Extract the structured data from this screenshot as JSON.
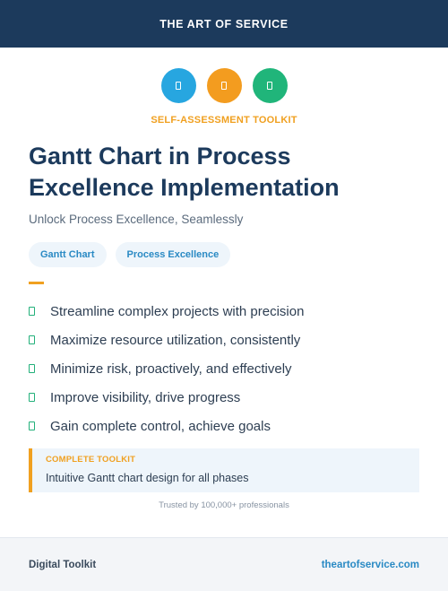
{
  "header": {
    "brand": "THE ART OF SERVICE"
  },
  "icons": [
    {
      "name": "document-icon",
      "color": "#27a6e0"
    },
    {
      "name": "document-icon",
      "color": "#f39c1f"
    },
    {
      "name": "document-icon",
      "color": "#20b57a"
    }
  ],
  "kicker": "SELF-ASSESSMENT TOOLKIT",
  "title": {
    "line1": "Gantt Chart in Process",
    "line2": "Excellence Implementation"
  },
  "subtitle": "Unlock Process Excellence, Seamlessly",
  "tags": [
    "Gantt Chart",
    "Process Excellence"
  ],
  "features": [
    "Streamline complex projects with precision",
    "Maximize resource utilization, consistently",
    "Minimize risk, proactively, and effectively",
    "Improve visibility, drive progress",
    "Gain complete control, achieve goals"
  ],
  "callout": {
    "label": "COMPLETE TOOLKIT",
    "text": "Intuitive Gantt chart design for all phases"
  },
  "trusted": "Trusted by 100,000+ professionals",
  "footer": {
    "left": "Digital Toolkit",
    "right": "theartofservice.com"
  },
  "colors": {
    "navy": "#1c3a5c",
    "accent_orange": "#f0a020",
    "accent_blue": "#2a8ac4",
    "accent_green": "#22b07a"
  }
}
